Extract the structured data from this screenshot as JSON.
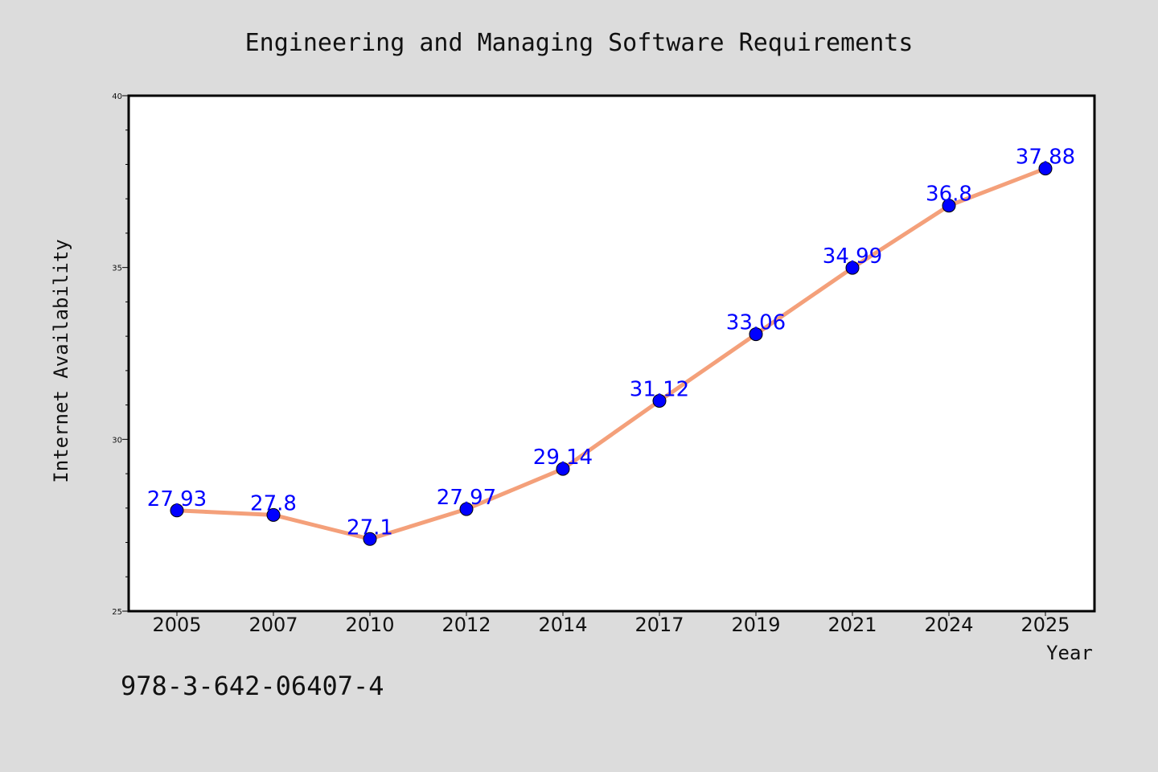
{
  "chart_data": {
    "type": "line",
    "title": "Engineering and Managing Software Requirements",
    "xlabel": "Year",
    "ylabel": "Internet Availability",
    "categories": [
      "2005",
      "2007",
      "2010",
      "2012",
      "2014",
      "2017",
      "2019",
      "2021",
      "2024",
      "2025"
    ],
    "series": [
      {
        "values": [
          27.93,
          27.8,
          27.1,
          27.97,
          29.14,
          31.12,
          33.06,
          34.99,
          36.8,
          37.88
        ],
        "data_labels": [
          "27.93",
          "27.8",
          "27.1",
          "27.97",
          "29.14",
          "31.12",
          "33.06",
          "34.99",
          "36.8",
          "37.88"
        ],
        "line_color": "#f4a07a",
        "marker_color": "#0000ff"
      }
    ],
    "ylim": [
      25,
      40
    ],
    "yticks": [
      "25",
      "30",
      "35",
      "40"
    ],
    "grid": false,
    "legend": "none"
  },
  "annotation": {
    "isbn": "978-3-642-06407-4"
  },
  "colors": {
    "background": "#dcdcdc",
    "plot_background": "#ffffff",
    "axis": "#000000"
  }
}
